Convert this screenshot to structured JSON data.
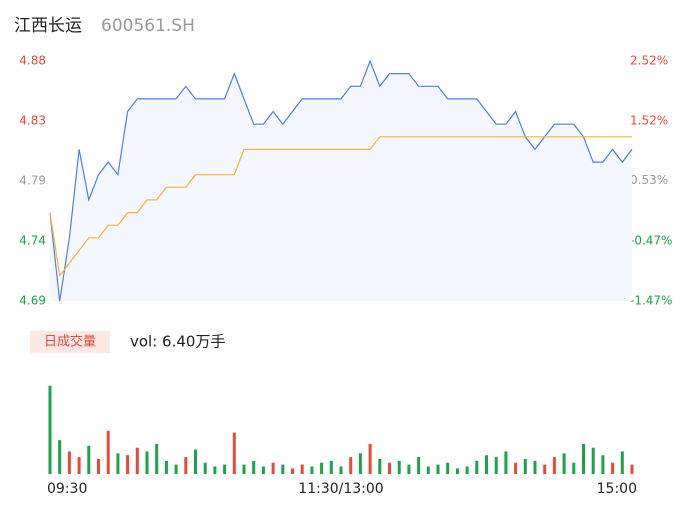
{
  "chart_data": [
    {
      "type": "line",
      "title": "江西长运",
      "subtitle": "600561.SH",
      "x": [
        0,
        4,
        8,
        12,
        16,
        20,
        24,
        28,
        32,
        36,
        40,
        44,
        48,
        52,
        56,
        60,
        64,
        68,
        72,
        76,
        80,
        84,
        88,
        92,
        96,
        100,
        104,
        108,
        112,
        116,
        120,
        124,
        128,
        132,
        136,
        140,
        144,
        148,
        152,
        156,
        160,
        164,
        168,
        172,
        176,
        180,
        184,
        188,
        192,
        196,
        200,
        204,
        208,
        212,
        216,
        220,
        224,
        228,
        232,
        236,
        240
      ],
      "xlim": [
        0,
        240
      ],
      "series": [
        {
          "color": "#4f7fe0",
          "values": [
            4.76,
            4.69,
            4.74,
            4.81,
            4.77,
            4.79,
            4.8,
            4.79,
            4.84,
            4.85,
            4.85,
            4.85,
            4.85,
            4.85,
            4.86,
            4.85,
            4.85,
            4.85,
            4.85,
            4.87,
            4.85,
            4.83,
            4.83,
            4.84,
            4.83,
            4.84,
            4.85,
            4.85,
            4.85,
            4.85,
            4.85,
            4.86,
            4.86,
            4.88,
            4.86,
            4.87,
            4.87,
            4.87,
            4.86,
            4.86,
            4.86,
            4.85,
            4.85,
            4.85,
            4.85,
            4.84,
            4.83,
            4.83,
            4.84,
            4.82,
            4.81,
            4.82,
            4.83,
            4.83,
            4.83,
            4.82,
            4.8,
            4.8,
            4.81,
            4.8,
            4.81
          ]
        },
        {
          "color": "#f2b53a",
          "values": [
            4.76,
            4.71,
            4.72,
            4.73,
            4.74,
            4.74,
            4.75,
            4.75,
            4.76,
            4.76,
            4.77,
            4.77,
            4.78,
            4.78,
            4.78,
            4.79,
            4.79,
            4.79,
            4.79,
            4.79,
            4.81,
            4.81,
            4.81,
            4.81,
            4.81,
            4.81,
            4.81,
            4.81,
            4.81,
            4.81,
            4.81,
            4.81,
            4.81,
            4.81,
            4.82,
            4.82,
            4.82,
            4.82,
            4.82,
            4.82,
            4.82,
            4.82,
            4.82,
            4.82,
            4.82,
            4.82,
            4.82,
            4.82,
            4.82,
            4.82,
            4.82,
            4.82,
            4.82,
            4.82,
            4.82,
            4.82,
            4.82,
            4.82,
            4.82,
            4.82,
            4.82
          ]
        }
      ],
      "area_color": "#f4f7fe",
      "ylim": [
        4.69,
        4.88
      ],
      "yticks": [
        4.69,
        {
          "value": 4.7375,
          "label": "4.74"
        },
        {
          "value": 4.785,
          "label": "4.79"
        },
        {
          "value": 4.8325,
          "label": "4.83"
        },
        4.88
      ],
      "ytick_colors": [
        "#1aa34a",
        "#1aa34a",
        "#999999",
        "#e64a3b",
        "#e64a3b"
      ],
      "y2lim": [
        -1.47,
        2.52
      ],
      "y2ticks": [
        {
          "value": -1.47,
          "label": "-1.47%"
        },
        {
          "value": -0.47,
          "label": "-0.47%"
        },
        {
          "value": 0.53,
          "label": "0.53%"
        },
        {
          "value": 1.52,
          "label": "1.52%"
        },
        {
          "value": 2.52,
          "label": "2.52%"
        }
      ]
    },
    {
      "type": "bar",
      "legend_label": "日成交量",
      "annotation": "vol: 6.40万手",
      "x": [
        0,
        4,
        8,
        12,
        16,
        20,
        24,
        28,
        32,
        36,
        40,
        44,
        48,
        52,
        56,
        60,
        64,
        68,
        72,
        76,
        80,
        84,
        88,
        92,
        96,
        100,
        104,
        108,
        112,
        116,
        120,
        124,
        128,
        132,
        136,
        140,
        144,
        148,
        152,
        156,
        160,
        164,
        168,
        172,
        176,
        180,
        184,
        188,
        192,
        196,
        200,
        204,
        208,
        212,
        216,
        220,
        224,
        228,
        232,
        236,
        240
      ],
      "xlim": [
        0,
        240
      ],
      "values": [
        4700,
        1800,
        1200,
        900,
        1500,
        800,
        2300,
        1100,
        1000,
        1400,
        1200,
        1600,
        700,
        500,
        900,
        1300,
        600,
        400,
        500,
        2200,
        500,
        700,
        400,
        600,
        500,
        300,
        500,
        400,
        600,
        700,
        400,
        900,
        1100,
        1600,
        800,
        600,
        700,
        500,
        900,
        400,
        500,
        600,
        300,
        400,
        700,
        1000,
        900,
        1200,
        600,
        800,
        700,
        500,
        900,
        1100,
        600,
        1600,
        1400,
        1000,
        600,
        1200,
        500
      ],
      "ylim": [
        0,
        5000
      ],
      "up_color": "#e64a3b",
      "down_color": "#1aa34a",
      "xticks": [
        {
          "value": 0,
          "label": "09:30"
        },
        {
          "value": 120,
          "label": "11:30/13:00"
        },
        {
          "value": 240,
          "label": "15:00"
        }
      ]
    }
  ]
}
